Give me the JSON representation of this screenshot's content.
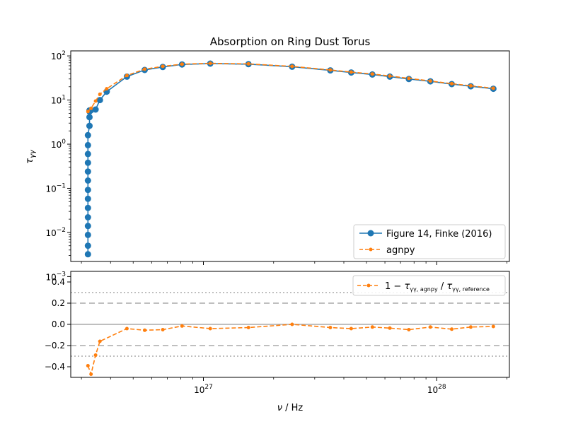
{
  "chart_data": [
    {
      "type": "line",
      "title": "Absorption on Ring Dust Torus",
      "ylabel": "τγγ",
      "x_scale": "log",
      "y_scale": "log",
      "xlim": [
        2.7e+26,
        2.05e+28
      ],
      "ylim": [
        0.0022,
        130
      ],
      "legend_position": "lower-right",
      "grid": false,
      "series": [
        {
          "name": "Figure 14, Finke (2016)",
          "color": "#1f77b4",
          "line_style": "solid",
          "marker": "circle",
          "x": [
            3.2e+26,
            3.2e+26,
            3.2e+26,
            3.2e+26,
            3.2e+26,
            3.2e+26,
            3.2e+26,
            3.2e+26,
            3.2e+26,
            3.2e+26,
            3.2e+26,
            3.2e+26,
            3.2e+26,
            3.2e+26,
            3.25e+26,
            3.25e+26,
            3.25e+26,
            3.25e+26,
            3.3e+26,
            3.45e+26,
            3.6e+26,
            3.85e+26,
            4.7e+26,
            5.6e+26,
            6.7e+26,
            8.1e+26,
            1.07e+27,
            1.56e+27,
            2.4e+27,
            3.5e+27,
            4.3e+27,
            5.3e+27,
            6.3e+27,
            7.6e+27,
            9.4e+27,
            1.16e+28,
            1.4e+28,
            1.75e+28
          ],
          "y": [
            0.0032,
            0.005,
            0.0088,
            0.014,
            0.022,
            0.036,
            0.058,
            0.092,
            0.15,
            0.24,
            0.38,
            0.6,
            0.95,
            1.6,
            2.6,
            4.1,
            5.5,
            5.8,
            5.9,
            6.1,
            10,
            15.5,
            34,
            48,
            56,
            64,
            67,
            65,
            57,
            47,
            42,
            38,
            34,
            30,
            26.5,
            23,
            20.5,
            18
          ]
        },
        {
          "name": "agnpy",
          "color": "#ff7f0e",
          "line_style": "dashed",
          "marker": "point",
          "x": [
            3.2e+26,
            3.3e+26,
            3.45e+26,
            3.6e+26,
            3.85e+26,
            4.7e+26,
            5.6e+26,
            6.7e+26,
            8.1e+26,
            1.07e+27,
            1.56e+27,
            2.4e+27,
            3.5e+27,
            4.3e+27,
            5.3e+27,
            6.3e+27,
            7.6e+27,
            9.4e+27,
            1.16e+28,
            1.4e+28,
            1.75e+28
          ],
          "y": [
            5.5,
            6.5,
            9.5,
            13.5,
            18,
            36,
            50,
            58,
            65,
            68,
            66,
            58,
            48,
            43,
            39,
            35,
            31,
            27,
            23.5,
            21,
            18.5
          ]
        }
      ]
    },
    {
      "type": "line",
      "xlabel": "ν / Hz",
      "x_scale": "log",
      "xlim": [
        2.7e+26,
        2.05e+28
      ],
      "ylim": [
        -0.5,
        0.5
      ],
      "x_ticks": [
        "10^27",
        "10^28"
      ],
      "y_ticks": [
        "0.4",
        "0.2",
        "0.0",
        "−0.2",
        "−0.4"
      ],
      "legend_position": "top-right",
      "grid": false,
      "reference_lines": {
        "solid": [
          0
        ],
        "dashed": [
          0.2,
          -0.2
        ],
        "dotted": [
          0.3,
          -0.3
        ]
      },
      "series": [
        {
          "name": "1 − τγγ,agnpy / τγγ,reference",
          "color": "#ff7f0e",
          "line_style": "dashed",
          "marker": "point",
          "x": [
            3.2e+26,
            3.3e+26,
            3.45e+26,
            3.6e+26,
            4.7e+26,
            5.6e+26,
            6.7e+26,
            8.1e+26,
            1.07e+27,
            1.56e+27,
            2.4e+27,
            3.5e+27,
            4.3e+27,
            5.3e+27,
            6.3e+27,
            7.6e+27,
            9.4e+27,
            1.16e+28,
            1.4e+28,
            1.75e+28
          ],
          "y": [
            -0.39,
            -0.47,
            -0.29,
            -0.16,
            -0.04,
            -0.055,
            -0.05,
            -0.015,
            -0.04,
            -0.03,
            0.0,
            -0.03,
            -0.04,
            -0.025,
            -0.035,
            -0.05,
            -0.025,
            -0.045,
            -0.025,
            -0.02
          ]
        }
      ]
    }
  ]
}
